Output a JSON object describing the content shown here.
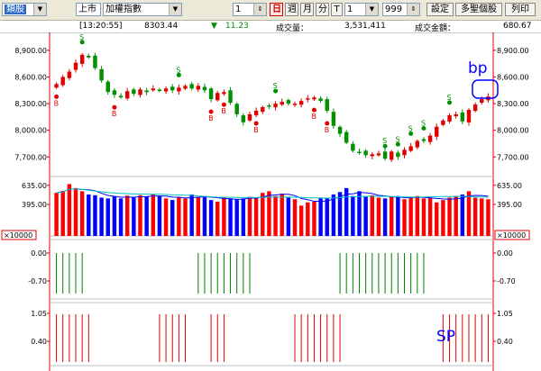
{
  "toolbar": {
    "category": "類股",
    "market": "上市",
    "index_name": "加權指數",
    "count1": "1",
    "period_day": "日",
    "period_week": "週",
    "period_month": "月",
    "period_minute": "分",
    "t_label": "T",
    "count2": "1",
    "bars": "999",
    "settings": "設定",
    "multi": "多聖個股",
    "print": "列印"
  },
  "info": {
    "time": "[13:20:55]",
    "price": "8303.44",
    "change_arrow": "▼",
    "change": "11.23",
    "volume_label": "成交量：",
    "volume": "3,531,411",
    "amount_label": "成交金額：",
    "amount": "680.67"
  },
  "annotations": {
    "bp": "bp",
    "sp": "SP"
  },
  "signal_labels": {
    "buy": "B",
    "sell": "S"
  },
  "axes": {
    "price_ticks": [
      "8,900.00",
      "8,600.00",
      "8,300.00",
      "8,000.00",
      "7,700.00"
    ],
    "volume_ticks": [
      "635.00",
      "395.00"
    ],
    "volume_unit": "×10000",
    "ind1_ticks": [
      "0.00",
      "-0.70"
    ],
    "ind2_ticks": [
      "1.05",
      "0.40"
    ]
  },
  "colors": {
    "up": "#e00000",
    "down": "#009000",
    "vol_up": "#ff0000",
    "vol_down": "#0000ff",
    "ma_vol": "#0000ff",
    "ma_vol2": "#00c0c0",
    "sig1": "#008000",
    "sig2": "#e00000"
  },
  "chart_data": {
    "type": "candlestick",
    "price_range": [
      7500,
      9000
    ],
    "volume_range": [
      0,
      700
    ],
    "closes": [
      8520,
      8600,
      8660,
      8760,
      8850,
      8820,
      8700,
      8560,
      8430,
      8400,
      8370,
      8440,
      8410,
      8460,
      8430,
      8470,
      8450,
      8470,
      8450,
      8480,
      8500,
      8470,
      8500,
      8450,
      8350,
      8420,
      8430,
      8310,
      8180,
      8090,
      8180,
      8220,
      8260,
      8270,
      8300,
      8320,
      8300,
      8300,
      8330,
      8360,
      8370,
      8330,
      8220,
      8050,
      7960,
      7860,
      7770,
      7750,
      7720,
      7730,
      7740,
      7680,
      7760,
      7700,
      7780,
      7820,
      7880,
      7880,
      7940,
      8040,
      8110,
      8170,
      8180,
      8100,
      8230,
      8290,
      8350,
      8380
    ],
    "volume": [
      540,
      565,
      650,
      600,
      560,
      520,
      510,
      480,
      470,
      500,
      470,
      505,
      480,
      510,
      495,
      520,
      500,
      470,
      450,
      490,
      470,
      520,
      490,
      500,
      450,
      430,
      480,
      470,
      460,
      470,
      490,
      480,
      540,
      560,
      500,
      530,
      480,
      460,
      380,
      420,
      430,
      480,
      470,
      520,
      550,
      600,
      500,
      560,
      490,
      510,
      480,
      470,
      490,
      500,
      460,
      480,
      500,
      470,
      480,
      420,
      450,
      480,
      500,
      520,
      560,
      480,
      470,
      460
    ],
    "signal1_bars": [
      1,
      1,
      1,
      1,
      1,
      0,
      0,
      0,
      0,
      0,
      0,
      0,
      0,
      0,
      0,
      0,
      0,
      0,
      0,
      0,
      0,
      0,
      1,
      1,
      1,
      1,
      1,
      1,
      1,
      1,
      1,
      0,
      0,
      0,
      0,
      0,
      0,
      0,
      0,
      0,
      0,
      0,
      0,
      0,
      1,
      1,
      1,
      1,
      1,
      1,
      1,
      1,
      1,
      1,
      1,
      1,
      1,
      1,
      0,
      0,
      0,
      0,
      0,
      0,
      0,
      0,
      0,
      0
    ],
    "signal2_bars": [
      1,
      1,
      1,
      1,
      1,
      1,
      0,
      0,
      0,
      0,
      0,
      0,
      0,
      0,
      0,
      0,
      1,
      1,
      1,
      1,
      1,
      0,
      0,
      0,
      1,
      1,
      1,
      0,
      0,
      0,
      0,
      0,
      0,
      0,
      0,
      0,
      0,
      1,
      1,
      1,
      1,
      1,
      1,
      1,
      1,
      0,
      0,
      0,
      0,
      0,
      0,
      0,
      0,
      0,
      0,
      0,
      0,
      0,
      0,
      0,
      1,
      1,
      1,
      1,
      1,
      1,
      1,
      1
    ],
    "buy_signals": [
      0,
      9,
      24,
      26,
      31,
      40,
      42
    ],
    "sell_signals": [
      4,
      19,
      34,
      51,
      53,
      55,
      57,
      61
    ]
  }
}
